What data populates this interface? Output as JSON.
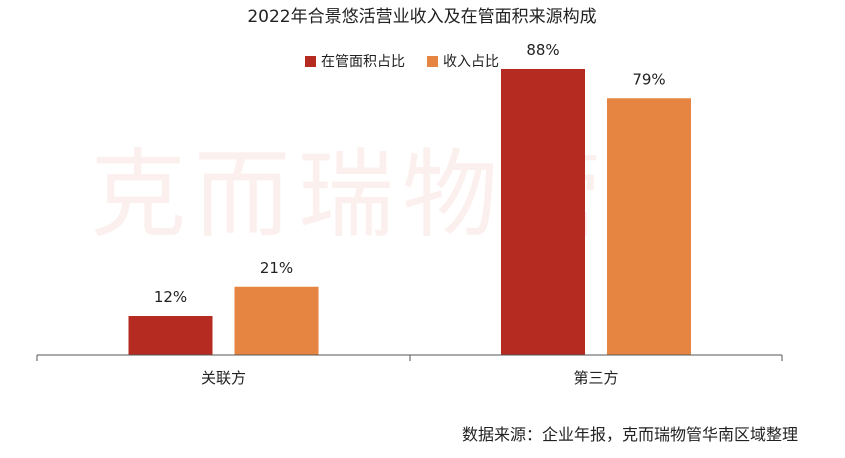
{
  "chart_data": {
    "type": "bar",
    "title": "2022年合景悠活营业收入及在管面积来源构成",
    "categories": [
      "关联方",
      "第三方"
    ],
    "series": [
      {
        "name": "在管面积占比",
        "values": [
          12,
          88
        ],
        "labels": [
          "12%",
          "88%"
        ],
        "color": "#b52b21"
      },
      {
        "name": "收入占比",
        "values": [
          21,
          79
        ],
        "labels": [
          "21%",
          "79%"
        ],
        "color": "#e68541"
      }
    ],
    "ylim": [
      0,
      100
    ],
    "unit": "%",
    "grid": false,
    "legend_position": "top-center"
  },
  "watermark": "克而瑞物管",
  "source": "数据来源：企业年报，克而瑞物管华南区域整理"
}
